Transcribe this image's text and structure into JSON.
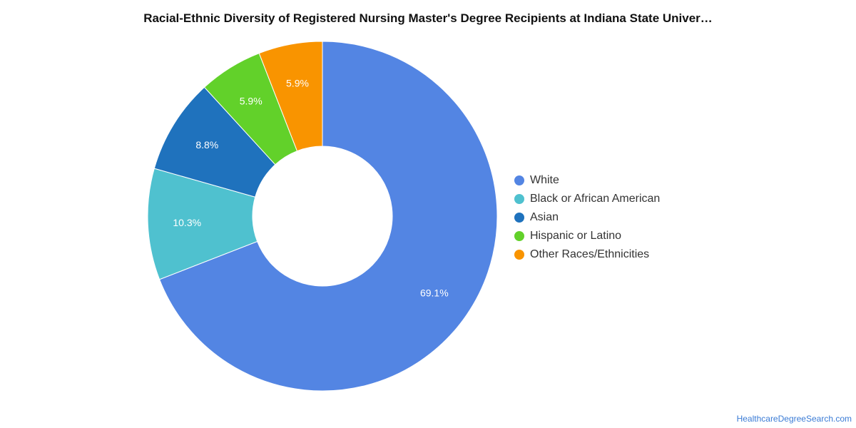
{
  "chart_data": {
    "type": "pie",
    "title": "Racial-Ethnic Diversity of Registered Nursing Master's Degree Recipients at Indiana State Univer…",
    "donut": true,
    "legend_position": "right",
    "slices": [
      {
        "label": "White",
        "value": 69.1,
        "display": "69.1%",
        "color": "#5385e3"
      },
      {
        "label": "Black or African American",
        "value": 10.3,
        "display": "10.3%",
        "color": "#4fc1cf"
      },
      {
        "label": "Asian",
        "value": 8.8,
        "display": "8.8%",
        "color": "#1f72bd"
      },
      {
        "label": "Hispanic or Latino",
        "value": 5.9,
        "display": "5.9%",
        "color": "#62d12a"
      },
      {
        "label": "Other Races/Ethnicities",
        "value": 5.9,
        "display": "5.9%",
        "color": "#f99400"
      }
    ]
  },
  "source_label": "HealthcareDegreeSearch.com"
}
